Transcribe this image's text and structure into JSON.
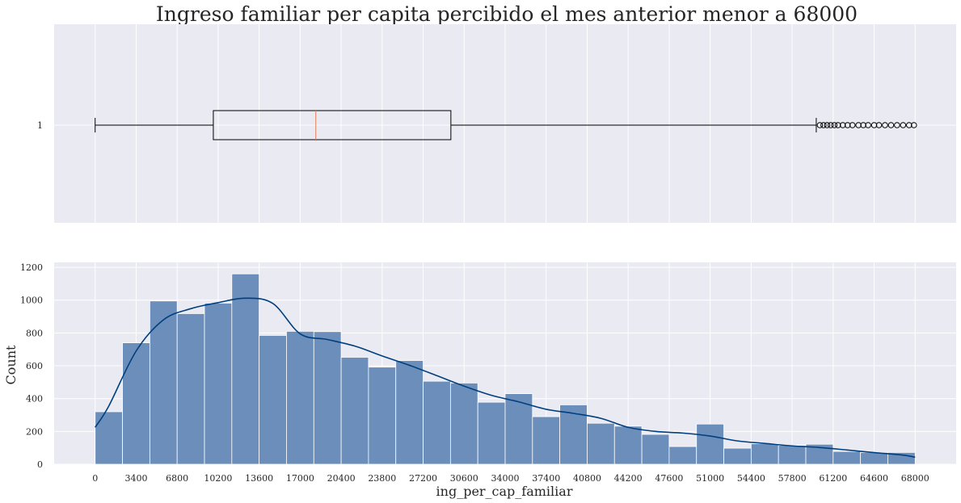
{
  "chart_data": [
    {
      "type": "boxplot",
      "title": "Ingreso familiar per capita percibido el mes anterior menor a 68000",
      "category_label": "1",
      "whisker_low": 0,
      "q1": 9800,
      "median": 18300,
      "q3": 29500,
      "whisker_high": 59800,
      "outliers": [
        60100,
        60400,
        60700,
        61000,
        61300,
        61600,
        62000,
        62400,
        62800,
        63300,
        63700,
        64100,
        64600,
        65000,
        65500,
        66000,
        66500,
        67000,
        67500,
        67900
      ],
      "xlim": [
        -3400,
        71400
      ],
      "grid": true,
      "colors": {
        "background": "#eaeaf2",
        "grid": "#ffffff",
        "box": "#000000",
        "median": "#e07b54"
      }
    },
    {
      "type": "histogram",
      "xlabel": "ing_per_cap_familiar",
      "ylabel": "Count",
      "xlim": [
        -3400,
        71400
      ],
      "ylim": [
        0,
        1230
      ],
      "xticks": [
        0,
        3400,
        6800,
        10200,
        13600,
        17000,
        20400,
        23800,
        27200,
        30600,
        34000,
        37400,
        40800,
        44200,
        47600,
        51000,
        54400,
        57800,
        61200,
        64600,
        68000
      ],
      "yticks": [
        0,
        200,
        400,
        600,
        800,
        1000,
        1200
      ],
      "bin_width": 2266.67,
      "bin_start": 0,
      "counts": [
        320,
        740,
        995,
        918,
        982,
        1160,
        785,
        810,
        808,
        652,
        592,
        632,
        506,
        495,
        378,
        430,
        290,
        362,
        250,
        232,
        182,
        108,
        245,
        98,
        125,
        115,
        122,
        78,
        72,
        72
      ],
      "kde_x": [
        0,
        1133,
        3400,
        5667,
        7933,
        10200,
        12467,
        14733,
        17000,
        19267,
        21533,
        23800,
        26067,
        28333,
        30600,
        32867,
        35133,
        37400,
        39667,
        41933,
        44200,
        46467,
        48733,
        51000,
        53267,
        55533,
        57800,
        60067,
        62333,
        64600,
        66867,
        68000
      ],
      "kde_y": [
        225,
        355,
        690,
        880,
        948,
        985,
        1012,
        980,
        795,
        760,
        720,
        660,
        603,
        540,
        476,
        420,
        380,
        335,
        310,
        280,
        225,
        200,
        190,
        172,
        142,
        127,
        112,
        102,
        87,
        71,
        57,
        43
      ],
      "grid": true,
      "colors": {
        "background": "#eaeaf2",
        "grid": "#ffffff",
        "bar": "#6c8ebb",
        "bar_edge": "#ffffff",
        "kde": "#003f7f"
      }
    }
  ]
}
